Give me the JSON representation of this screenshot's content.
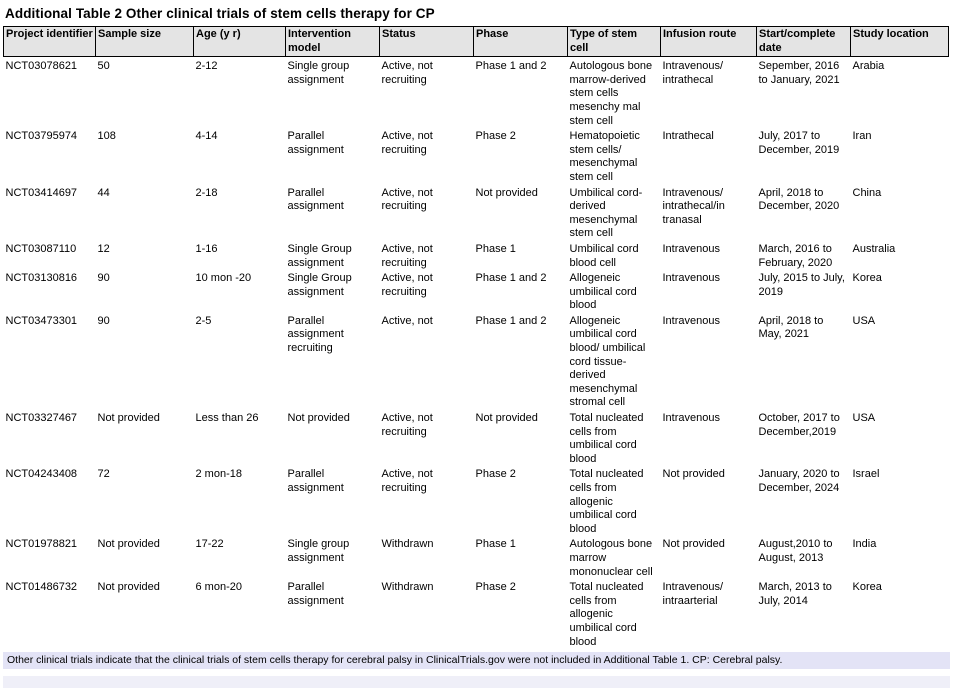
{
  "title": "Additional Table 2 Other clinical trials of stem cells therapy for CP",
  "table": {
    "columns": [
      {
        "label": "Project identifier"
      },
      {
        "label": "Sample size"
      },
      {
        "label": "Age (y r)"
      },
      {
        "label": "Intervention model"
      },
      {
        "label": "Status"
      },
      {
        "label": "Phase"
      },
      {
        "label": "Type of stem cell"
      },
      {
        "label": "Infusion route"
      },
      {
        "label": "Start/complete date"
      },
      {
        "label": "Study location"
      }
    ],
    "rows": [
      [
        "NCT03078621",
        "50",
        "2-12",
        "Single group assignment",
        "Active, not recruiting",
        "Phase 1 and 2",
        "Autologous bone marrow-derived stem cells mesenchy mal stem cell",
        "Intravenous/ intrathecal",
        "Sepember, 2016 to January, 2021",
        "Arabia"
      ],
      [
        "NCT03795974",
        "108",
        "4-14",
        "Parallel assignment",
        "Active, not recruiting",
        "Phase 2",
        "Hematopoietic stem cells/ mesenchymal stem cell",
        "Intrathecal",
        "July, 2017 to December, 2019",
        "Iran"
      ],
      [
        "NCT03414697",
        "44",
        "2-18",
        "Parallel assignment",
        "Active, not recruiting",
        "Not provided",
        "Umbilical cord-derived mesenchymal stem cell",
        "Intravenous/ intrathecal/in tranasal",
        "April, 2018 to December, 2020",
        "China"
      ],
      [
        "NCT03087110",
        "12",
        "1-16",
        "Single Group assignment",
        "Active, not recruiting",
        "Phase 1",
        "Umbilical cord blood cell",
        "Intravenous",
        "March, 2016 to February, 2020",
        "Australia"
      ],
      [
        "NCT03130816",
        "90",
        "10 mon -20",
        "Single Group assignment",
        "Active, not recruiting",
        "Phase 1 and 2",
        "Allogeneic umbilical cord blood",
        "Intravenous",
        "July, 2015 to July, 2019",
        "Korea"
      ],
      [
        "NCT03473301",
        "90",
        "2-5",
        "Parallel assignment recruiting",
        "Active, not",
        "Phase 1 and 2",
        "Allogeneic umbilical cord blood/ umbilical cord tissue-derived mesenchymal stromal cell",
        "Intravenous",
        "April, 2018 to May, 2021",
        "USA"
      ],
      [
        "NCT03327467",
        "Not provided",
        "Less than 26",
        "Not provided",
        "Active, not recruiting",
        "Not provided",
        "Total nucleated cells from umbilical cord blood",
        "Intravenous",
        "October, 2017 to December,2019",
        "USA"
      ],
      [
        "NCT04243408",
        "72",
        "2 mon-18",
        "Parallel assignment",
        "Active, not recruiting",
        "Phase 2",
        "Total nucleated cells from allogenic umbilical cord blood",
        "Not provided",
        "January, 2020 to December, 2024",
        "Israel"
      ],
      [
        "NCT01978821",
        "Not provided",
        "17-22",
        "Single group assignment",
        "Withdrawn",
        "Phase 1",
        "Autologous bone marrow mononuclear cell",
        "Not provided",
        "August,2010 to August, 2013",
        "India"
      ],
      [
        "NCT01486732",
        "Not provided",
        "6 mon-20",
        "Parallel assignment",
        "Withdrawn",
        "Phase 2",
        "Total nucleated cells from allogenic umbilical cord blood",
        "Intravenous/ intraarterial",
        "March, 2013 to July, 2014",
        "Korea"
      ]
    ]
  },
  "footnote": "Other clinical trials indicate that the clinical trials of stem cells therapy for cerebral palsy in ClinicalTrials.gov were not included in Additional Table 1. CP: Cerebral palsy.",
  "colors": {
    "header_bg": "#e4e4e4",
    "border": "#000000",
    "footnote_bg": "#e3e3f6",
    "text": "#000000"
  }
}
